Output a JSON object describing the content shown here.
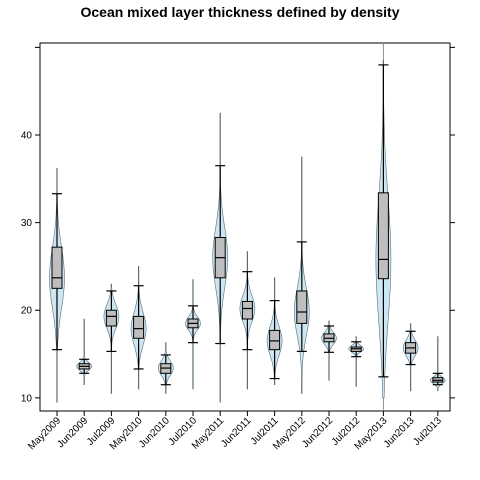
{
  "chart_data": {
    "type": "violin",
    "title": "Ocean mixed layer thickness defined by density",
    "xlabel": "",
    "ylabel": "",
    "ylim": [
      8.5,
      50.5
    ],
    "yticks": [
      10,
      20,
      30,
      40
    ],
    "grid": false,
    "legend": "none",
    "reference_line_at": "May2013",
    "categories": [
      "May2009",
      "Jun2009",
      "Jul2009",
      "May2010",
      "Jun2010",
      "Jul2010",
      "May2011",
      "Jun2011",
      "Jul2011",
      "May2012",
      "Jun2012",
      "Jul2012",
      "May2013",
      "Jun2013",
      "Jul2013"
    ],
    "series": [
      {
        "category": "May2009",
        "min": 9.5,
        "whisker_low": 15.5,
        "q1": 22.5,
        "median": 23.7,
        "q3": 27.2,
        "whisker_high": 33.3,
        "max": 36.2
      },
      {
        "category": "Jun2009",
        "min": 11.5,
        "whisker_low": 12.8,
        "q1": 13.3,
        "median": 13.6,
        "q3": 13.9,
        "whisker_high": 14.4,
        "max": 19.0
      },
      {
        "category": "Jul2009",
        "min": 10.5,
        "whisker_low": 15.3,
        "q1": 18.2,
        "median": 19.3,
        "q3": 20.0,
        "whisker_high": 22.2,
        "max": 23.0
      },
      {
        "category": "May2010",
        "min": 11.0,
        "whisker_low": 13.3,
        "q1": 16.8,
        "median": 17.9,
        "q3": 19.3,
        "whisker_high": 22.8,
        "max": 25.0
      },
      {
        "category": "Jun2010",
        "min": 10.5,
        "whisker_low": 11.5,
        "q1": 12.8,
        "median": 13.4,
        "q3": 13.9,
        "whisker_high": 14.9,
        "max": 16.3
      },
      {
        "category": "Jul2010",
        "min": 11.0,
        "whisker_low": 16.3,
        "q1": 18.0,
        "median": 18.5,
        "q3": 19.0,
        "whisker_high": 20.5,
        "max": 23.5
      },
      {
        "category": "May2011",
        "min": 9.5,
        "whisker_low": 16.2,
        "q1": 23.7,
        "median": 26.0,
        "q3": 28.3,
        "whisker_high": 36.5,
        "max": 42.5
      },
      {
        "category": "Jun2011",
        "min": 11.0,
        "whisker_low": 15.5,
        "q1": 19.0,
        "median": 20.2,
        "q3": 21.0,
        "whisker_high": 24.4,
        "max": 26.7
      },
      {
        "category": "Jul2011",
        "min": 11.5,
        "whisker_low": 12.2,
        "q1": 15.5,
        "median": 16.5,
        "q3": 17.7,
        "whisker_high": 21.1,
        "max": 23.7
      },
      {
        "category": "May2012",
        "min": 10.5,
        "whisker_low": 15.3,
        "q1": 18.5,
        "median": 19.8,
        "q3": 22.2,
        "whisker_high": 27.8,
        "max": 37.5
      },
      {
        "category": "Jun2012",
        "min": 12.0,
        "whisker_low": 15.2,
        "q1": 16.4,
        "median": 16.8,
        "q3": 17.3,
        "whisker_high": 18.2,
        "max": 18.8
      },
      {
        "category": "Jul2012",
        "min": 11.3,
        "whisker_low": 14.7,
        "q1": 15.3,
        "median": 15.6,
        "q3": 15.8,
        "whisker_high": 16.4,
        "max": 17.0
      },
      {
        "category": "May2013",
        "min": 10.0,
        "whisker_low": 12.4,
        "q1": 23.6,
        "median": 25.8,
        "q3": 33.4,
        "whisker_high": 48.0,
        "max": 48.5
      },
      {
        "category": "Jun2013",
        "min": 10.8,
        "whisker_low": 13.8,
        "q1": 15.1,
        "median": 15.7,
        "q3": 16.3,
        "whisker_high": 17.6,
        "max": 18.5
      },
      {
        "category": "Jul2013",
        "min": 10.8,
        "whisker_low": 11.5,
        "q1": 11.8,
        "median": 12.0,
        "q3": 12.3,
        "whisker_high": 12.8,
        "max": 17.0
      }
    ],
    "colors": {
      "violin_fill": "#cce7f2",
      "violin_stroke": "#5a6e7a",
      "box_fill": "#bebebe",
      "box_stroke": "#000000",
      "reference_line": "#909090",
      "axis": "#000000"
    }
  }
}
